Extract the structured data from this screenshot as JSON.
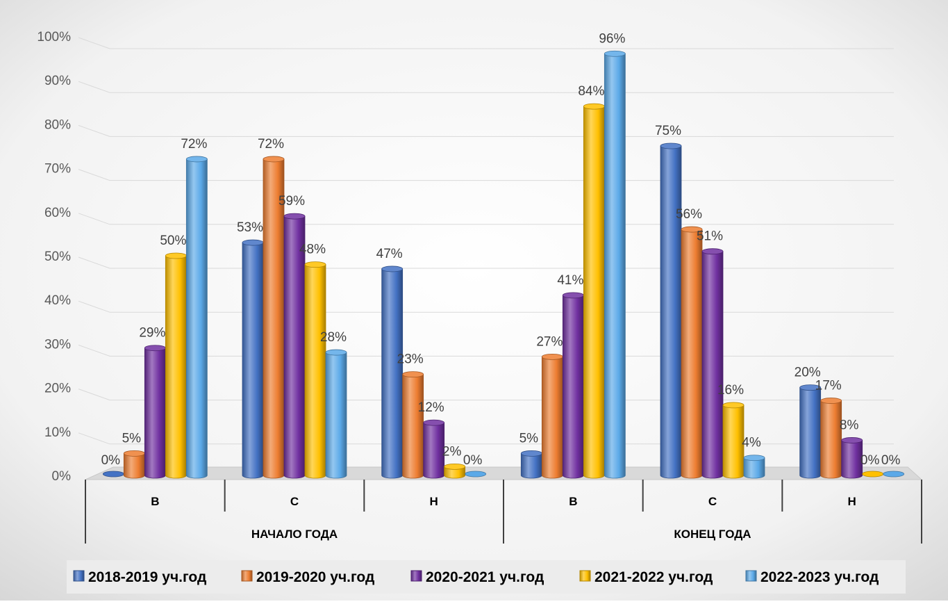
{
  "chart_data": {
    "type": "bar",
    "title": "",
    "xlabel": "",
    "ylabel": "",
    "ylim": [
      0,
      100
    ],
    "y_ticks": [
      "0%",
      "10%",
      "20%",
      "30%",
      "40%",
      "50%",
      "60%",
      "70%",
      "80%",
      "90%",
      "100%"
    ],
    "grid": true,
    "legend_position": "bottom",
    "groups": [
      {
        "label": "НАЧАЛО ГОДА",
        "categories": [
          "В",
          "С",
          "Н"
        ]
      },
      {
        "label": "КОНЕЦ ГОДА",
        "categories": [
          "В",
          "С",
          "Н"
        ]
      }
    ],
    "categories": [
      "В",
      "С",
      "Н",
      "В",
      "С",
      "Н"
    ],
    "series": [
      {
        "name": "2018-2019 уч.год",
        "color": "#4472C4",
        "values": [
          0,
          53,
          47,
          5,
          75,
          20
        ],
        "labels": [
          "0%",
          "53%",
          "47%",
          "5%",
          "75%",
          "20%"
        ]
      },
      {
        "name": "2019-2020 уч.год",
        "color": "#ED7D31",
        "values": [
          5,
          72,
          23,
          27,
          56,
          17
        ],
        "labels": [
          "5%",
          "72%",
          "23%",
          "27%",
          "56%",
          "17%"
        ]
      },
      {
        "name": "2020-2021 уч.год",
        "color": "#7030A0",
        "values": [
          29,
          59,
          12,
          41,
          51,
          8
        ],
        "labels": [
          "29%",
          "59%",
          "12%",
          "41%",
          "51%",
          "8%"
        ]
      },
      {
        "name": "2021-2022 уч.год",
        "color": "#FFC000",
        "values": [
          50,
          48,
          2,
          84,
          16,
          0
        ],
        "labels": [
          "50%",
          "48%",
          "2%",
          "84%",
          "16%",
          "0%"
        ]
      },
      {
        "name": "2022-2023 уч.год",
        "color": "#5BA9E8",
        "values": [
          72,
          28,
          0,
          96,
          4,
          0
        ],
        "labels": [
          "72%",
          "28%",
          "0%",
          "96%",
          "4%",
          "0%"
        ]
      }
    ]
  }
}
